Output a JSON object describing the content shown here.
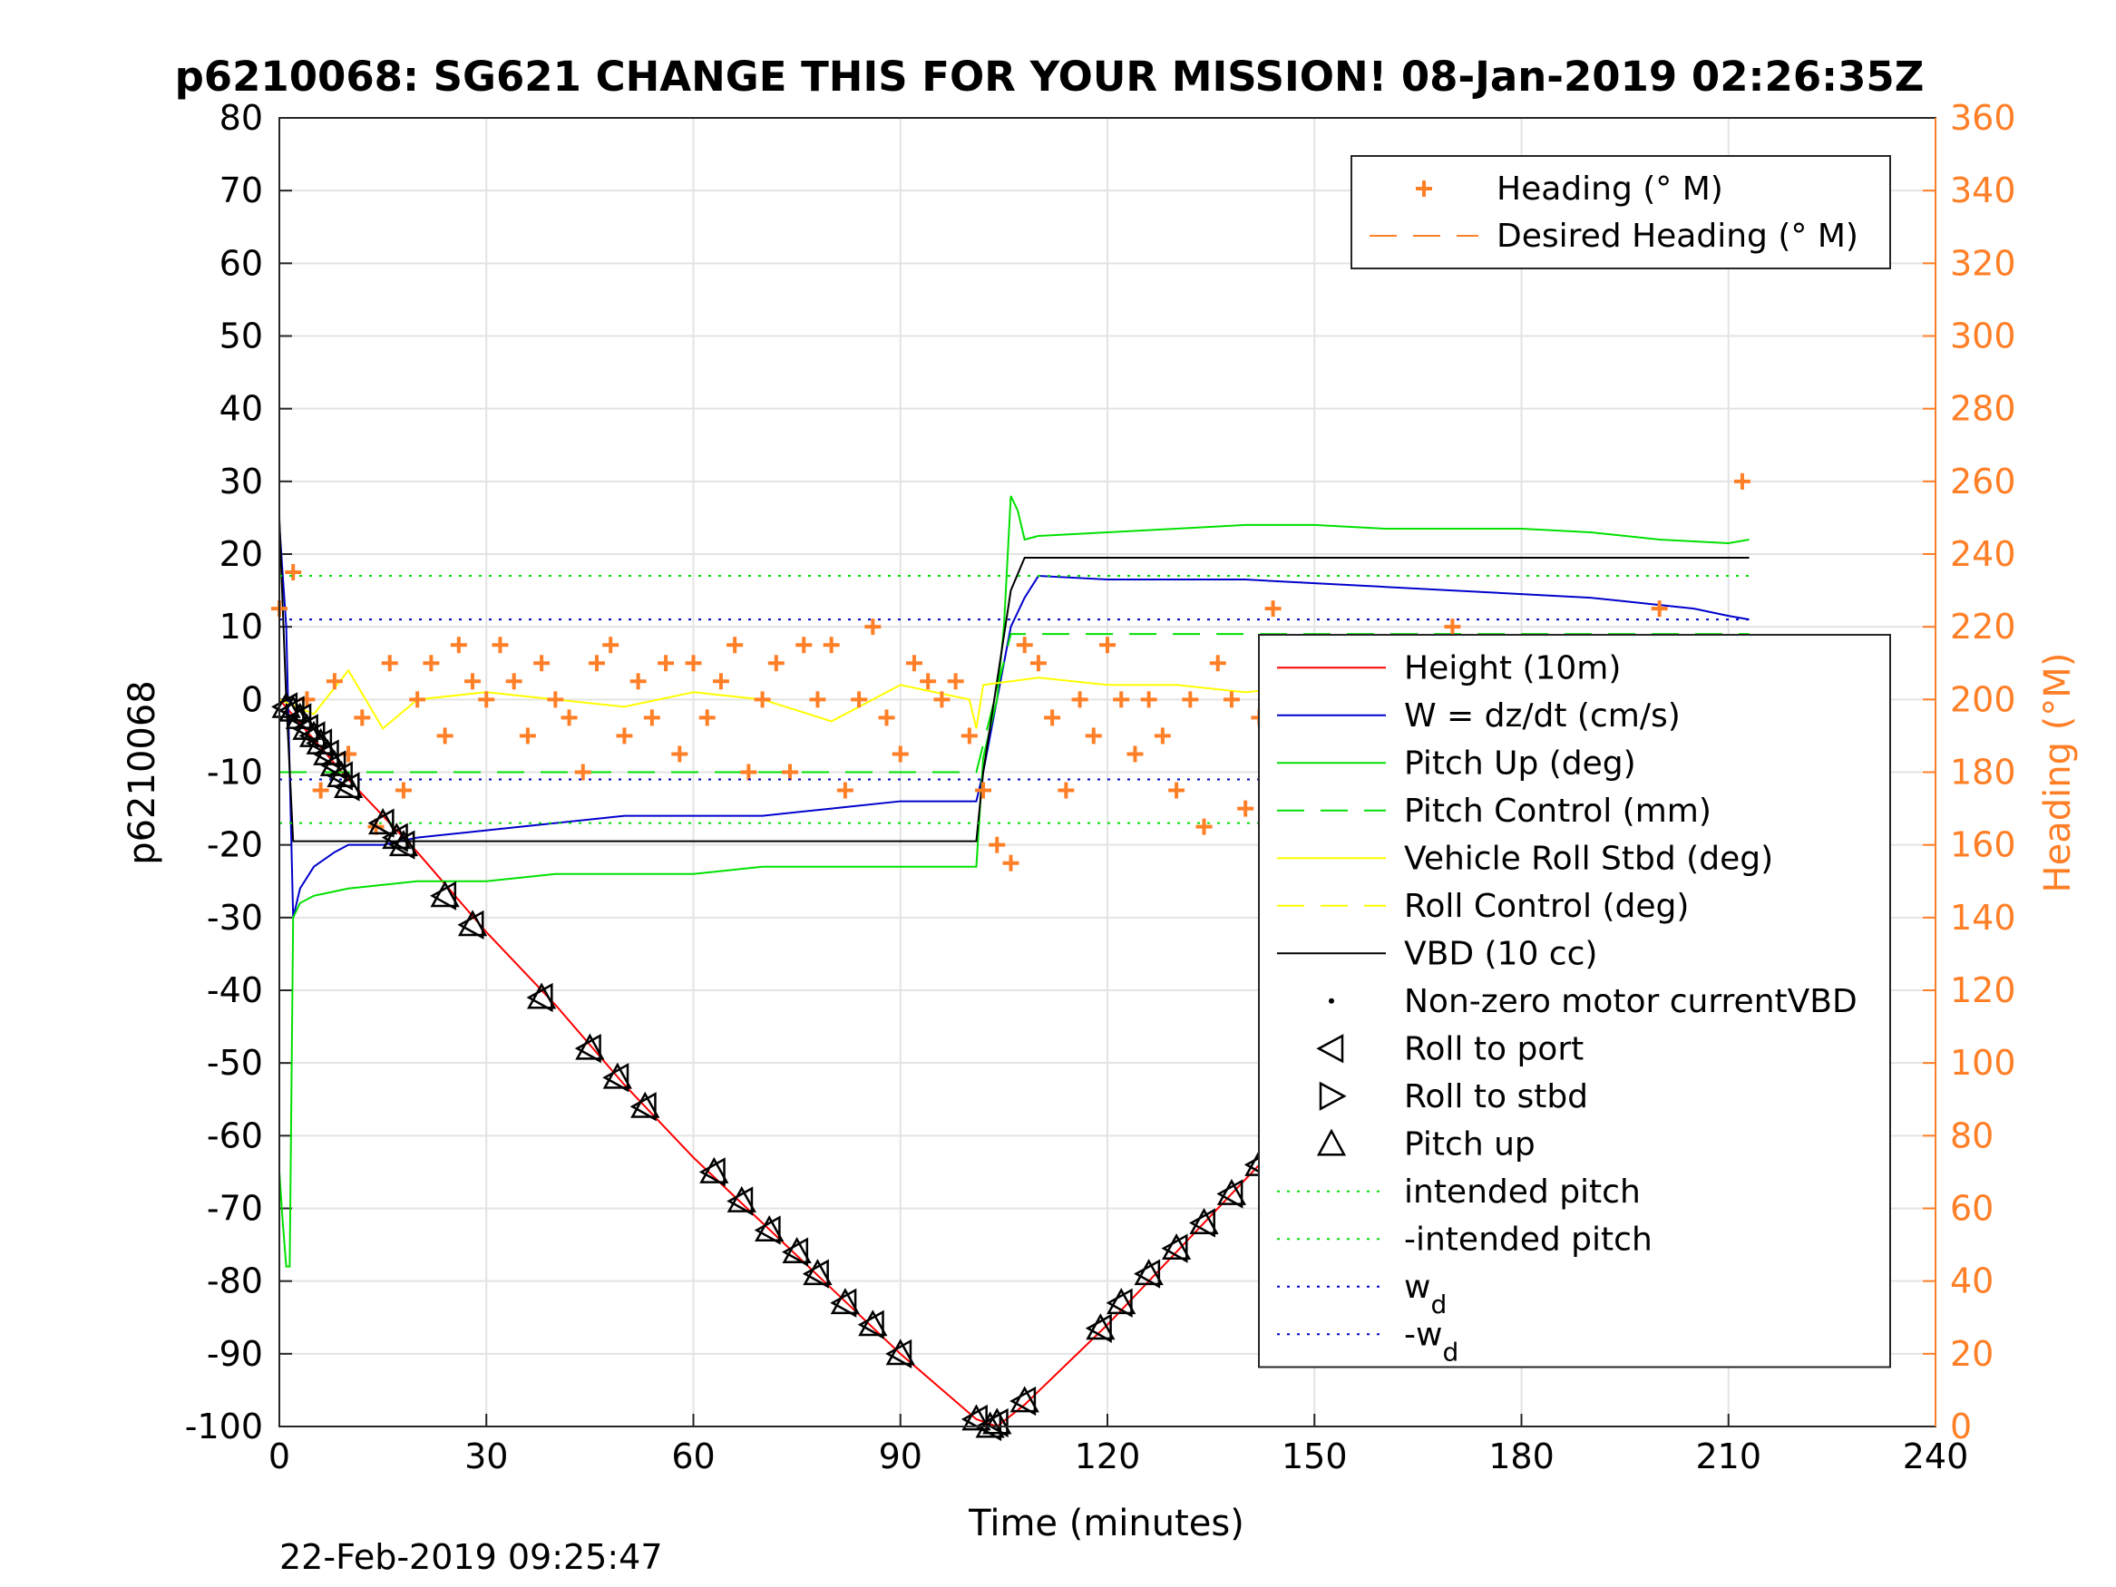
{
  "chart_data": {
    "type": "line",
    "title": "p6210068: SG621 CHANGE THIS FOR YOUR MISSION! 08-Jan-2019 02:26:35Z",
    "footer": "22-Feb-2019 09:25:47",
    "xlabel": "Time (minutes)",
    "ylabel": "p6210068",
    "y2label": "Heading (°M)",
    "xlim": [
      0,
      240
    ],
    "ylim": [
      -100,
      80
    ],
    "y2lim": [
      0,
      360
    ],
    "xticks": [
      "0",
      "30",
      "60",
      "90",
      "120",
      "150",
      "180",
      "210",
      "240"
    ],
    "yticks": [
      "80",
      "70",
      "60",
      "50",
      "40",
      "30",
      "20",
      "10",
      "0",
      "-10",
      "-20",
      "-30",
      "-40",
      "-50",
      "-60",
      "-70",
      "-80",
      "-90",
      "-100"
    ],
    "y2ticks": [
      "360",
      "340",
      "320",
      "300",
      "280",
      "260",
      "240",
      "220",
      "200",
      "180",
      "160",
      "140",
      "120",
      "100",
      "80",
      "60",
      "40",
      "20",
      "0"
    ],
    "grid": true,
    "legend_right": {
      "placement": "top-right",
      "entries": [
        {
          "label": "Heading (° M)",
          "sub": "",
          "style": "plus",
          "color": "#ff7f27"
        },
        {
          "label": "Desired Heading (° M)",
          "sub": "",
          "style": "dash",
          "color": "#ff7f27"
        }
      ]
    },
    "legend_left": {
      "placement": "lower-right",
      "entries": [
        {
          "label": "Height (10m)",
          "sub": "",
          "style": "solid",
          "color": "#ff0000"
        },
        {
          "label": "W = dz/dt (cm/s)",
          "sub": "",
          "style": "solid",
          "color": "#0000cc"
        },
        {
          "label": "Pitch Up (deg)",
          "sub": "",
          "style": "solid",
          "color": "#00e000"
        },
        {
          "label": "Pitch Control (mm)",
          "sub": "",
          "style": "dash",
          "color": "#00e000"
        },
        {
          "label": "Vehicle Roll Stbd (deg)",
          "sub": "",
          "style": "solid",
          "color": "#ffff00"
        },
        {
          "label": "Roll Control (deg)",
          "sub": "",
          "style": "dash",
          "color": "#ffff00"
        },
        {
          "label": "VBD (10 cc)",
          "sub": "",
          "style": "solid",
          "color": "#000000"
        },
        {
          "label": "Non-zero motor currentVBD",
          "sub": "",
          "style": "dot",
          "color": "#000000"
        },
        {
          "label": "Roll to port",
          "sub": "",
          "style": "tri-left",
          "color": "#000000"
        },
        {
          "label": "Roll to stbd",
          "sub": "",
          "style": "tri-right",
          "color": "#000000"
        },
        {
          "label": "Pitch up",
          "sub": "",
          "style": "tri-up",
          "color": "#000000"
        },
        {
          "label": "intended pitch",
          "sub": "",
          "style": "dotted",
          "color": "#00e000"
        },
        {
          "label": "-intended pitch",
          "sub": "",
          "style": "dotted",
          "color": "#00e000"
        },
        {
          "label": "w",
          "sub": "d",
          "style": "dotted",
          "color": "#0000cc"
        },
        {
          "label": "-w",
          "sub": "d",
          "style": "dotted",
          "color": "#0000cc"
        }
      ]
    },
    "colors": {
      "heading": "#ff7f27",
      "height": "#ff0000",
      "w": "#0000cc",
      "pitch": "#00e000",
      "roll": "#ffff00",
      "vbd": "#000000"
    },
    "series": [
      {
        "key": "height",
        "unit_axis": "left",
        "x": [
          0,
          10,
          20,
          30,
          40,
          50,
          60,
          70,
          80,
          90,
          101,
          104,
          108,
          120,
          130,
          140,
          150,
          160,
          170,
          180,
          190,
          200,
          210
        ],
        "y": [
          0,
          -11,
          -21,
          -32,
          -42,
          -53,
          -63,
          -72,
          -81,
          -90,
          -99,
          -100,
          -97,
          -86,
          -76,
          -66,
          -56,
          -46,
          -37,
          -27,
          -18,
          -9,
          -3
        ]
      },
      {
        "key": "w",
        "unit_axis": "left",
        "x": [
          0,
          1,
          1.5,
          2,
          3,
          5,
          8,
          10,
          15,
          20,
          30,
          40,
          50,
          60,
          70,
          80,
          90,
          101,
          102,
          104,
          106,
          108,
          110,
          120,
          130,
          140,
          150,
          160,
          170,
          180,
          190,
          200,
          205,
          210,
          213
        ],
        "y": [
          24,
          10,
          -10,
          -30,
          -26,
          -23,
          -21,
          -20,
          -20,
          -19,
          -18,
          -17,
          -16,
          -16,
          -16,
          -15,
          -14,
          -14,
          -10,
          0,
          10,
          14,
          17,
          16.5,
          16.5,
          16.5,
          16,
          15.5,
          15,
          14.5,
          14,
          13,
          12.5,
          11.5,
          11
        ]
      },
      {
        "key": "pitch",
        "unit_axis": "left",
        "x": [
          0,
          0.5,
          1,
          1.5,
          2,
          3,
          5,
          10,
          20,
          30,
          40,
          50,
          60,
          70,
          80,
          90,
          101,
          102,
          104,
          105,
          106,
          107,
          108,
          110,
          120,
          130,
          140,
          150,
          160,
          170,
          180,
          190,
          200,
          210,
          213
        ],
        "y": [
          -65,
          -72,
          -78,
          -78,
          -30,
          -28,
          -27,
          -26,
          -25,
          -25,
          -24,
          -24,
          -24,
          -23,
          -23,
          -23,
          -23,
          -8,
          0,
          10,
          28,
          26,
          22,
          22.5,
          23,
          23.5,
          24,
          24,
          23.5,
          23.5,
          23.5,
          23,
          22,
          21.5,
          22
        ]
      },
      {
        "key": "pitch_control",
        "unit_axis": "left",
        "style": "dash",
        "x": [
          0,
          101,
          106,
          213
        ],
        "y": [
          -10,
          -10,
          9,
          9
        ]
      },
      {
        "key": "vbd",
        "unit_axis": "left",
        "x": [
          0,
          1,
          2,
          101,
          102,
          106,
          108,
          213
        ],
        "y": [
          25,
          0,
          -19.5,
          -19.5,
          -10,
          15,
          19.5,
          19.5
        ]
      },
      {
        "key": "roll",
        "unit_axis": "left",
        "x": [
          0,
          5,
          10,
          15,
          20,
          30,
          40,
          50,
          60,
          70,
          80,
          90,
          100,
          101,
          102,
          110,
          120,
          130,
          140,
          150,
          160,
          170,
          180,
          190,
          200,
          210,
          213
        ],
        "y": [
          0,
          -2,
          4,
          -4,
          0,
          1,
          0,
          -1,
          1,
          0,
          -3,
          2,
          0,
          -4,
          2,
          3,
          2,
          2,
          1,
          2,
          3,
          2,
          3,
          2,
          3,
          2,
          1
        ]
      },
      {
        "key": "heading",
        "unit_axis": "right",
        "style": "plus",
        "x": [
          0,
          2,
          4,
          6,
          8,
          10,
          12,
          14,
          16,
          18,
          20,
          22,
          24,
          26,
          28,
          30,
          32,
          34,
          36,
          38,
          40,
          42,
          44,
          46,
          48,
          50,
          52,
          54,
          56,
          58,
          60,
          62,
          64,
          66,
          68,
          70,
          72,
          74,
          76,
          78,
          80,
          82,
          84,
          86,
          88,
          90,
          92,
          94,
          96,
          98,
          100,
          102,
          104,
          106,
          108,
          110,
          112,
          114,
          116,
          118,
          120,
          122,
          124,
          126,
          128,
          130,
          132,
          134,
          136,
          138,
          140,
          142,
          144,
          146,
          148,
          150,
          152,
          154,
          156,
          158,
          160,
          162,
          164,
          166,
          168,
          170,
          172,
          174,
          176,
          178,
          180,
          182,
          184,
          186,
          188,
          190,
          192,
          194,
          196,
          198,
          200,
          202,
          204,
          206,
          208,
          210,
          212,
          213
        ],
        "y": [
          225,
          235,
          200,
          175,
          205,
          185,
          195,
          165,
          210,
          175,
          200,
          210,
          190,
          215,
          205,
          200,
          215,
          205,
          190,
          210,
          200,
          195,
          180,
          210,
          215,
          190,
          205,
          195,
          210,
          185,
          210,
          195,
          205,
          215,
          180,
          200,
          210,
          180,
          215,
          200,
          215,
          175,
          200,
          220,
          195,
          185,
          210,
          205,
          200,
          205,
          190,
          175,
          160,
          155,
          215,
          210,
          195,
          175,
          200,
          190,
          215,
          200,
          185,
          200,
          190,
          175,
          200,
          165,
          210,
          200,
          170,
          195,
          225,
          200,
          165,
          210,
          185,
          200,
          195,
          175,
          200,
          215,
          180,
          200,
          170,
          220,
          205,
          190,
          215,
          180,
          200,
          215,
          175,
          190,
          200,
          205,
          215,
          190,
          180,
          205,
          225,
          185,
          125,
          215,
          200,
          195,
          260,
          215
        ]
      },
      {
        "key": "intended_pitch",
        "unit_axis": "left",
        "style": "dotted",
        "x": [
          0,
          213
        ],
        "y": [
          17,
          17
        ]
      },
      {
        "key": "neg_intended_pitch",
        "unit_axis": "left",
        "style": "dotted",
        "x": [
          0,
          213
        ],
        "y": [
          -17,
          -17
        ]
      },
      {
        "key": "wd",
        "unit_axis": "left",
        "style": "dotted",
        "x": [
          0,
          213
        ],
        "y": [
          11,
          11
        ]
      },
      {
        "key": "neg_wd",
        "unit_axis": "left",
        "style": "dotted",
        "x": [
          0,
          213
        ],
        "y": [
          -11,
          -11
        ]
      }
    ],
    "markers": {
      "x": [
        1,
        2,
        3,
        4,
        5,
        6,
        7,
        8,
        9,
        10,
        15,
        17,
        18,
        24,
        28,
        38,
        45,
        49,
        53,
        63,
        67,
        71,
        75,
        78,
        82,
        86,
        90,
        101,
        103,
        104,
        108,
        119,
        122,
        126,
        130,
        134,
        138,
        142,
        145,
        148,
        150,
        153,
        157,
        161,
        171,
        181,
        185,
        189,
        194,
        198,
        203,
        205,
        207,
        209,
        210
      ],
      "y": [
        -1,
        -1.5,
        -2.5,
        -4,
        -5,
        -6,
        -7.5,
        -9,
        -10.5,
        -12,
        -17,
        -19,
        -20,
        -27,
        -31,
        -41,
        -48,
        -52,
        -56,
        -65,
        -69,
        -73,
        -76,
        -79,
        -83,
        -86,
        -90,
        -99,
        -100,
        -99.5,
        -96.5,
        -86.5,
        -83,
        -79,
        -75.5,
        -72,
        -68,
        -64,
        -60.5,
        -57.5,
        -55.5,
        -52.5,
        -49,
        -45.5,
        -36,
        -27,
        -23,
        -20,
        -15,
        -12,
        -8,
        -7,
        -5,
        -3.5,
        -2.5
      ]
    }
  }
}
